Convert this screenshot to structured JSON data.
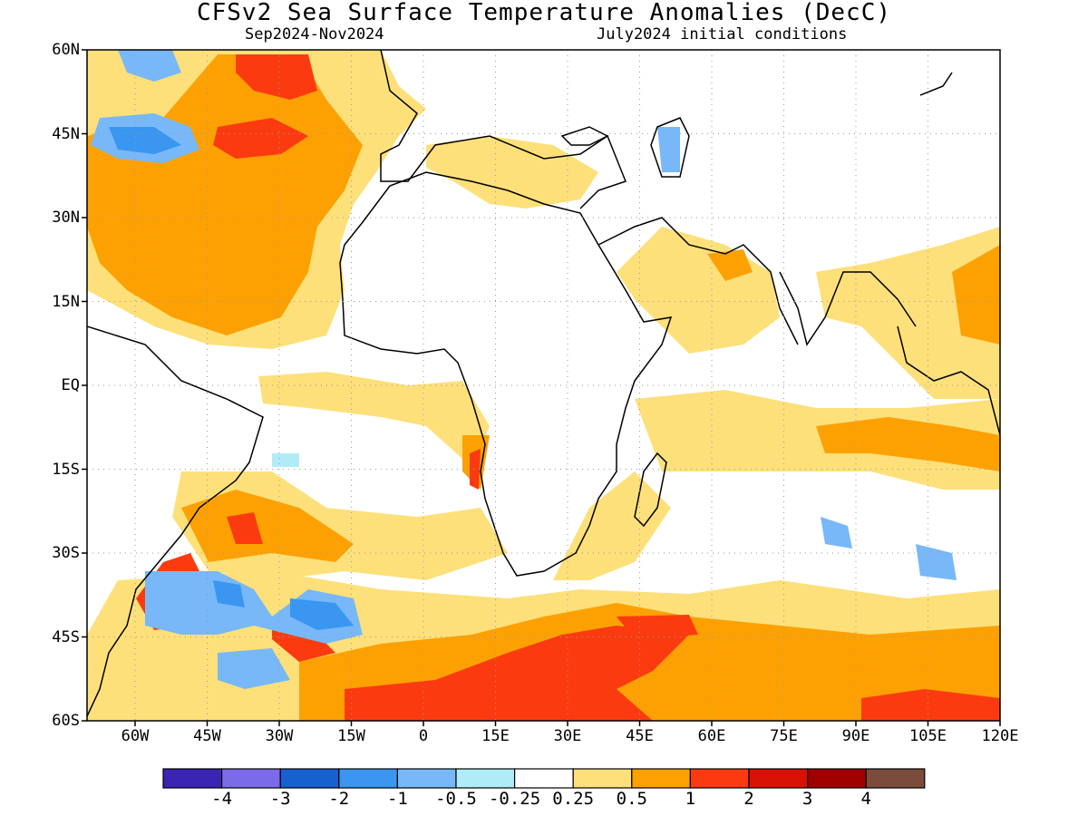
{
  "title": "CFSv2 Sea Surface Temperature Anomalies (DecC)",
  "period": "Sep2024-Nov2024",
  "initial_conditions": "July2024 initial conditions",
  "map": {
    "projection": "latitude-longitude",
    "lon_range": [
      -70,
      120
    ],
    "lat_range": [
      -60,
      60
    ],
    "lat_labels": [
      "60N",
      "45N",
      "30N",
      "15N",
      "EQ",
      "15S",
      "30S",
      "45S",
      "60S"
    ],
    "lon_labels": [
      "60W",
      "45W",
      "30W",
      "15W",
      "0",
      "15E",
      "30E",
      "45E",
      "60E",
      "75E",
      "90E",
      "105E",
      "120E"
    ],
    "gridlines": "dotted",
    "coastlines": true
  },
  "colorbar": {
    "colors": [
      "#3a24b4",
      "#7b6be8",
      "#1760d0",
      "#3a96f0",
      "#78b8f8",
      "#b0ecf8",
      "#ffffff",
      "#fde07a",
      "#fda102",
      "#fb3b0f",
      "#d91004",
      "#a00000",
      "#7b4c3c"
    ],
    "labels": [
      "-4",
      "-3",
      "-2",
      "-1",
      "-0.5",
      "-0.25",
      "0.25",
      "0.5",
      "1",
      "2",
      "3",
      "4"
    ]
  },
  "anomaly_regions": [
    {
      "region": "subtropical North Atlantic",
      "level": "0.5"
    },
    {
      "region": "mid-latitude North Atlantic",
      "level": "1"
    },
    {
      "region": "off Newfoundland",
      "level": "-1"
    },
    {
      "region": "Mediterranean Sea",
      "level": "0.5"
    },
    {
      "region": "Caspian Sea",
      "level": "-0.5"
    },
    {
      "region": "Arabian Sea",
      "level": "0.5"
    },
    {
      "region": "Maritime Continent",
      "level": "0.5"
    },
    {
      "region": "Southern Ocean south of Africa",
      "level": "2"
    },
    {
      "region": "Brazil-Malvinas confluence",
      "level": "2"
    },
    {
      "region": "South Atlantic 40S",
      "level": "-1"
    },
    {
      "region": "off Angola",
      "level": "2"
    }
  ]
}
